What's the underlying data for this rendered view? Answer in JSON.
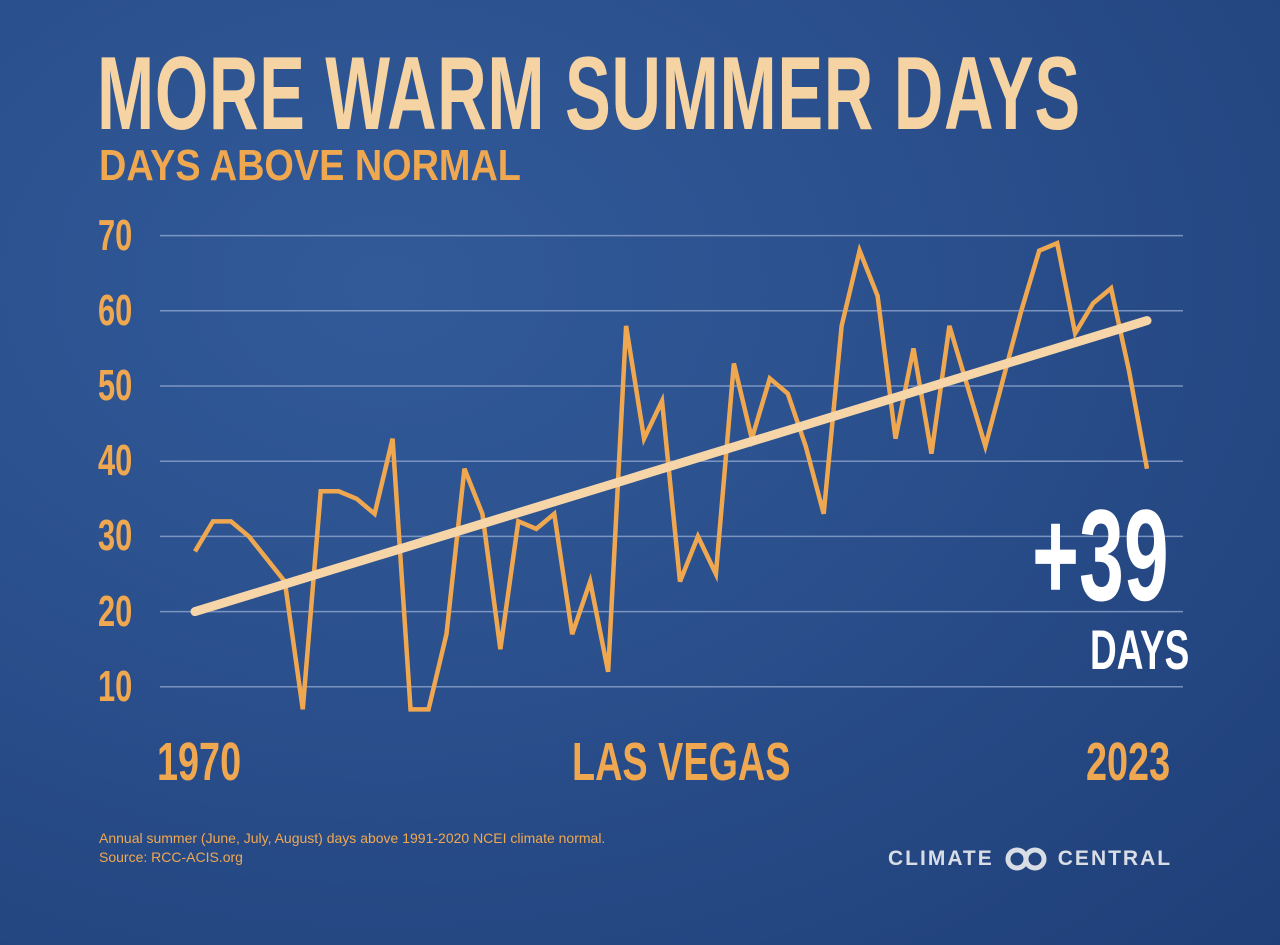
{
  "chart_data": {
    "type": "line",
    "title": "MORE WARM SUMMER DAYS",
    "subtitle": "DAYS ABOVE NORMAL",
    "location_label": "LAS VEGAS",
    "x_tick_labels": [
      "1970",
      "2023"
    ],
    "y_ticks": [
      10,
      20,
      30,
      40,
      50,
      60,
      70
    ],
    "ylim": [
      0,
      70
    ],
    "grid": true,
    "years": [
      1970,
      1971,
      1972,
      1973,
      1974,
      1975,
      1976,
      1977,
      1978,
      1979,
      1980,
      1981,
      1982,
      1983,
      1984,
      1985,
      1986,
      1987,
      1988,
      1989,
      1990,
      1991,
      1992,
      1993,
      1994,
      1995,
      1996,
      1997,
      1998,
      1999,
      2000,
      2001,
      2002,
      2003,
      2004,
      2005,
      2006,
      2007,
      2008,
      2009,
      2010,
      2011,
      2012,
      2013,
      2014,
      2015,
      2016,
      2017,
      2018,
      2019,
      2020,
      2021,
      2022,
      2023
    ],
    "series": [
      {
        "values": [
          28,
          32,
          32,
          30,
          27,
          24,
          7,
          36,
          36,
          35,
          33,
          43,
          7,
          7,
          17,
          39,
          33,
          15,
          32,
          31,
          33,
          17,
          24,
          12,
          58,
          43,
          48,
          24,
          30,
          25,
          53,
          43,
          51,
          49,
          42,
          33,
          58,
          68,
          62,
          43,
          55,
          41,
          58,
          50,
          42,
          51,
          60,
          68,
          69,
          57,
          61,
          63,
          52,
          39
        ],
        "color": "#f0a850"
      },
      {
        "type": "trend",
        "start": 20,
        "end": 58.7,
        "color": "#f6d6a8"
      }
    ],
    "annotation": {
      "value": "+39",
      "unit": "DAYS"
    }
  },
  "footnote": {
    "line1": "Annual summer (June, July, August) days above 1991-2020 NCEI climate normal.",
    "line2": "Source: RCC-ACIS.org"
  },
  "logo": {
    "left": "CLIMATE",
    "right": "CENTRAL"
  },
  "colors": {
    "background": "#2a4f8c",
    "accent": "#f0a850",
    "title": "#f6d3a2"
  }
}
